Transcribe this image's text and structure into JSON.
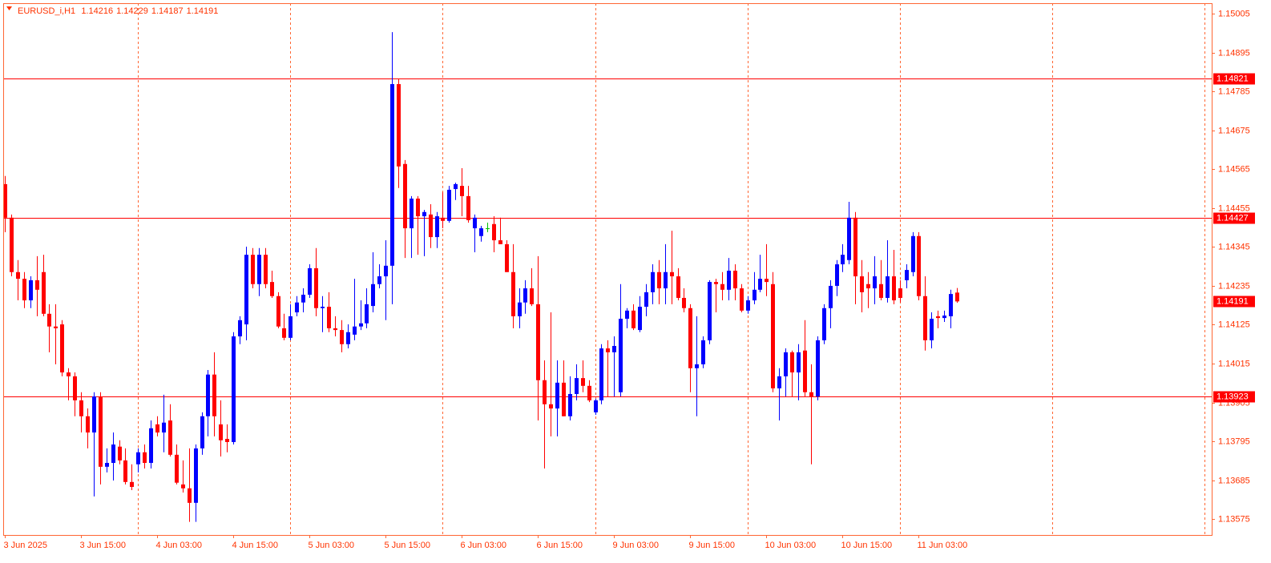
{
  "chart_data": {
    "type": "candlestick",
    "title": "EURUSD_i,H1",
    "categories": [
      "3 Jun 2025",
      null,
      null,
      null,
      null,
      null,
      null,
      null,
      null,
      null,
      null,
      null,
      "3 Jun 15:00",
      null,
      null,
      null,
      null,
      null,
      null,
      null,
      null,
      null,
      null,
      null,
      "4 Jun 03:00",
      null,
      null,
      null,
      null,
      null,
      null,
      null,
      null,
      null,
      null,
      null,
      "4 Jun 15:00",
      null,
      null,
      null,
      null,
      null,
      null,
      null,
      null,
      null,
      null,
      null,
      "5 Jun 03:00",
      null,
      null,
      null,
      null,
      null,
      null,
      null,
      null,
      null,
      null,
      null,
      "5 Jun 15:00",
      null,
      null,
      null,
      null,
      null,
      null,
      null,
      null,
      null,
      null,
      null,
      "6 Jun 03:00",
      null,
      null,
      null,
      null,
      null,
      null,
      null,
      null,
      null,
      null,
      null,
      "6 Jun 15:00",
      null,
      null,
      null,
      null,
      null,
      null,
      null,
      null,
      null,
      null,
      null,
      "9 Jun 03:00",
      null,
      null,
      null,
      null,
      null,
      null,
      null,
      null,
      null,
      null,
      null,
      "9 Jun 15:00",
      null,
      null,
      null,
      null,
      null,
      null,
      null,
      null,
      null,
      null,
      null,
      "10 Jun 03:00",
      null,
      null,
      null,
      null,
      null,
      null,
      null,
      null,
      null,
      null,
      null,
      "10 Jun 15:00",
      null,
      null,
      null,
      null,
      null,
      null,
      null,
      null,
      null,
      null,
      null,
      "11 Jun 03:00",
      null,
      null,
      null,
      null,
      null,
      null
    ],
    "open": [
      1.14523,
      1.14428,
      1.14274,
      1.14255,
      1.14194,
      1.14251,
      1.14274,
      1.14156,
      1.1412,
      1.14126,
      1.1399,
      1.13979,
      1.13911,
      1.13866,
      1.1382,
      1.13922,
      1.13723,
      1.13734,
      1.1378,
      1.13741,
      1.1368,
      1.1373,
      1.13764,
      1.13734,
      1.13843,
      1.1382,
      1.13854,
      1.13757,
      1.13673,
      1.13662,
      1.13621,
      1.13775,
      1.13866,
      1.13984,
      1.13843,
      1.13802,
      1.13793,
      1.14092,
      1.14126,
      1.14323,
      1.1424,
      1.14323,
      1.14246,
      1.14206,
      1.14115,
      1.14088,
      1.1416,
      1.14188,
      1.1421,
      1.14285,
      1.14172,
      1.14176,
      1.14115,
      1.1411,
      1.1407,
      1.14097,
      1.1412,
      1.14129,
      1.14178,
      1.1424,
      1.14262,
      1.14292,
      1.14806,
      1.1458,
      1.14398,
      1.14482,
      1.14432,
      1.14437,
      1.14373,
      1.14428,
      1.14419,
      1.14509,
      1.14518,
      1.14489,
      1.14398,
      1.14376,
      1.14398,
      1.1441,
      1.14364,
      1.14353,
      1.14274,
      1.14149,
      1.14188,
      1.14228,
      1.14183,
      1.13968,
      1.139,
      1.13888,
      1.13961,
      1.13866,
      1.13929,
      1.13974,
      1.13952,
      1.13877,
      1.13911,
      1.14058,
      1.14047,
      1.13934,
      1.14142,
      1.14165,
      1.1411,
      1.14176,
      1.14217,
      1.14274,
      1.14228,
      1.14274,
      1.14262,
      1.14201,
      1.14172,
      1.14002,
      1.14013,
      1.14081,
      1.14246,
      1.1424,
      1.14224,
      1.14278,
      1.14228,
      1.14165,
      1.14194,
      1.14224,
      1.14255,
      1.1424,
      1.13945,
      1.13979,
      1.14047,
      1.1399,
      1.14052,
      1.13934,
      1.13922,
      1.14081,
      1.14172,
      1.14235,
      1.14296,
      1.14308,
      1.14428,
      1.14262,
      1.1424,
      1.14228,
      1.1424,
      1.14201,
      1.14262,
      1.14228,
      1.14251,
      1.14274,
      1.14376,
      1.14206,
      1.14081,
      1.14149,
      1.14144,
      1.14149,
      1.14216
    ],
    "high": [
      1.14546,
      1.14437,
      1.14308,
      1.14274,
      1.14262,
      1.14319,
      1.14323,
      1.14183,
      1.14183,
      1.14138,
      1.14002,
      1.1399,
      1.13934,
      1.13888,
      1.13934,
      1.13934,
      1.13775,
      1.1382,
      1.13798,
      1.13775,
      1.1373,
      1.13775,
      1.13786,
      1.13854,
      1.13866,
      1.13927,
      1.139,
      1.13786,
      1.13741,
      1.13775,
      1.13786,
      1.13877,
      1.13997,
      1.14047,
      1.13911,
      1.13843,
      1.14104,
      1.14149,
      1.14346,
      1.14342,
      1.14342,
      1.14342,
      1.14278,
      1.14217,
      1.14156,
      1.14183,
      1.14206,
      1.14228,
      1.14296,
      1.14342,
      1.14206,
      1.14217,
      1.14149,
      1.14138,
      1.14126,
      1.14255,
      1.14194,
      1.14228,
      1.1433,
      1.14296,
      1.14364,
      1.14953,
      1.14822,
      1.14591,
      1.14489,
      1.14489,
      1.1445,
      1.14466,
      1.14444,
      1.145,
      1.14518,
      1.14527,
      1.14568,
      1.14518,
      1.14437,
      1.14405,
      1.14414,
      1.14432,
      1.14428,
      1.14364,
      1.14353,
      1.14228,
      1.14251,
      1.14285,
      1.14319,
      1.14024,
      1.1416,
      1.14024,
      1.14024,
      1.13979,
      1.14013,
      1.14024,
      1.13968,
      1.13916,
      1.1407,
      1.14081,
      1.14092,
      1.1424,
      1.14172,
      1.14183,
      1.14206,
      1.1424,
      1.14296,
      1.14308,
      1.14353,
      1.14391,
      1.14285,
      1.14228,
      1.14183,
      1.14149,
      1.14092,
      1.14251,
      1.14255,
      1.14274,
      1.14314,
      1.14296,
      1.1424,
      1.14206,
      1.14274,
      1.14323,
      1.14353,
      1.14274,
      1.14002,
      1.14058,
      1.14052,
      1.1407,
      1.14138,
      1.14013,
      1.14092,
      1.14183,
      1.14251,
      1.14308,
      1.14353,
      1.14473,
      1.14444,
      1.14308,
      1.14274,
      1.14319,
      1.14308,
      1.14364,
      1.14337,
      1.14251,
      1.14296,
      1.14387,
      1.14387,
      1.14262,
      1.1416,
      1.14165,
      1.14165,
      1.14224,
      1.14229
    ],
    "low": [
      1.14387,
      1.14262,
      1.14194,
      1.14172,
      1.14172,
      1.14149,
      1.14149,
      1.14047,
      1.14013,
      1.13979,
      1.13911,
      1.13866,
      1.1382,
      1.13775,
      1.13639,
      1.13673,
      1.13707,
      1.13684,
      1.1373,
      1.13673,
      1.13657,
      1.13707,
      1.13718,
      1.13718,
      1.13809,
      1.13764,
      1.13752,
      1.13673,
      1.1365,
      1.13567,
      1.13567,
      1.13757,
      1.13809,
      1.13809,
      1.13752,
      1.13764,
      1.13786,
      1.1407,
      1.14081,
      1.14228,
      1.14206,
      1.14228,
      1.14201,
      1.14115,
      1.14081,
      1.14081,
      1.14149,
      1.1416,
      1.14201,
      1.14149,
      1.14104,
      1.14104,
      1.14092,
      1.14047,
      1.14058,
      1.14081,
      1.1411,
      1.14115,
      1.1416,
      1.14228,
      1.14138,
      1.14183,
      1.14512,
      1.14314,
      1.14314,
      1.14323,
      1.14319,
      1.14342,
      1.14342,
      1.14398,
      1.14414,
      1.14478,
      1.14432,
      1.14414,
      1.1433,
      1.1436,
      1.14387,
      1.1433,
      1.14353,
      1.14274,
      1.14115,
      1.14115,
      1.14156,
      1.14178,
      1.13854,
      1.13718,
      1.13809,
      1.13809,
      1.13866,
      1.13854,
      1.13911,
      1.13934,
      1.13906,
      1.1387,
      1.139,
      1.13922,
      1.13922,
      1.13922,
      1.14115,
      1.1411,
      1.14104,
      1.14149,
      1.14183,
      1.14183,
      1.14183,
      1.14183,
      1.14194,
      1.1416,
      1.13934,
      1.13866,
      1.14002,
      1.1407,
      1.1416,
      1.14194,
      1.14194,
      1.14194,
      1.1416,
      1.14156,
      1.14183,
      1.14217,
      1.14206,
      1.13934,
      1.13854,
      1.13922,
      1.13922,
      1.13911,
      1.13922,
      1.1373,
      1.13911,
      1.1407,
      1.14115,
      1.14206,
      1.14274,
      1.14296,
      1.14183,
      1.1416,
      1.14172,
      1.14183,
      1.14194,
      1.14188,
      1.14183,
      1.14188,
      1.14228,
      1.14262,
      1.14194,
      1.14052,
      1.14058,
      1.14115,
      1.14133,
      1.14115,
      1.14187
    ],
    "close": [
      1.14428,
      1.14274,
      1.14255,
      1.14194,
      1.14251,
      1.14224,
      1.14156,
      1.1412,
      1.14115,
      1.1399,
      1.13979,
      1.13911,
      1.13866,
      1.1382,
      1.13922,
      1.13723,
      1.13734,
      1.13786,
      1.13741,
      1.1368,
      1.13666,
      1.13764,
      1.13734,
      1.13832,
      1.1382,
      1.13848,
      1.13757,
      1.13678,
      1.13662,
      1.13621,
      1.13775,
      1.13866,
      1.13984,
      1.13866,
      1.13798,
      1.13793,
      1.14092,
      1.14138,
      1.14323,
      1.1424,
      1.14323,
      1.1424,
      1.14206,
      1.1412,
      1.14088,
      1.14149,
      1.14188,
      1.1421,
      1.14285,
      1.14172,
      1.14176,
      1.14115,
      1.1411,
      1.1407,
      1.14104,
      1.1412,
      1.14129,
      1.14183,
      1.1424,
      1.14262,
      1.14292,
      1.14806,
      1.14573,
      1.14398,
      1.14482,
      1.14432,
      1.14444,
      1.14373,
      1.14432,
      1.14419,
      1.14507,
      1.14523,
      1.14489,
      1.14421,
      1.14428,
      1.14398,
      1.14398,
      1.14364,
      1.14353,
      1.14274,
      1.14149,
      1.14188,
      1.14228,
      1.14183,
      1.13968,
      1.139,
      1.13888,
      1.13961,
      1.13866,
      1.13929,
      1.13974,
      1.13952,
      1.13911,
      1.13911,
      1.14058,
      1.14047,
      1.14065,
      1.14142,
      1.14165,
      1.14115,
      1.14176,
      1.14217,
      1.14274,
      1.14228,
      1.14274,
      1.14262,
      1.14201,
      1.14172,
      1.14002,
      1.14013,
      1.14081,
      1.14246,
      1.1424,
      1.14224,
      1.14278,
      1.14228,
      1.14165,
      1.14194,
      1.14224,
      1.14255,
      1.14246,
      1.13945,
      1.13979,
      1.14047,
      1.1399,
      1.14047,
      1.13934,
      1.13922,
      1.14081,
      1.14172,
      1.14235,
      1.14296,
      1.14323,
      1.14428,
      1.14262,
      1.14217,
      1.14228,
      1.14262,
      1.14201,
      1.14262,
      1.14194,
      1.14201,
      1.1428,
      1.14376,
      1.14206,
      1.14081,
      1.14142,
      1.14144,
      1.14151,
      1.14212,
      1.14191
    ],
    "up_color": "#0000ff",
    "down_color": "#ff0000",
    "doji_color": "#00c000",
    "ylim": [
      1.1353,
      1.15035
    ],
    "yticks": [
      1.15005,
      1.14895,
      1.14785,
      1.14675,
      1.14565,
      1.14455,
      1.14345,
      1.14235,
      1.14125,
      1.14015,
      1.13905,
      1.13795,
      1.13685,
      1.13575
    ],
    "levels": [
      {
        "value": 1.14821,
        "color": "#ff0000"
      },
      {
        "value": 1.14427,
        "color": "#ff0000"
      },
      {
        "value": 1.13923,
        "color": "#ff0000"
      }
    ]
  }
}
